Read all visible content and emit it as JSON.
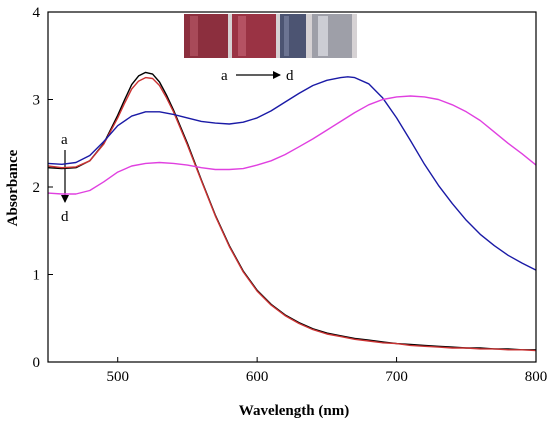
{
  "chart_data": {
    "type": "line",
    "xlabel": "Wavelength (nm)",
    "ylabel": "Absorbance",
    "xlim": [
      450,
      800
    ],
    "ylim": [
      0,
      4
    ],
    "xticks": [
      500,
      600,
      700,
      800
    ],
    "yticks": [
      0,
      1,
      2,
      3,
      4
    ],
    "grid": false,
    "legend": "none",
    "series": [
      {
        "key": "a",
        "color": "#000000",
        "x": [
          450,
          460,
          470,
          480,
          490,
          500,
          505,
          510,
          515,
          520,
          525,
          530,
          535,
          540,
          550,
          560,
          570,
          580,
          590,
          600,
          610,
          620,
          630,
          640,
          650,
          660,
          670,
          680,
          690,
          700,
          710,
          720,
          730,
          740,
          750,
          760,
          770,
          780,
          790,
          800
        ],
        "y": [
          2.22,
          2.21,
          2.22,
          2.3,
          2.5,
          2.82,
          3.0,
          3.17,
          3.27,
          3.31,
          3.29,
          3.2,
          3.05,
          2.88,
          2.5,
          2.08,
          1.68,
          1.33,
          1.04,
          0.82,
          0.66,
          0.54,
          0.45,
          0.38,
          0.33,
          0.3,
          0.27,
          0.25,
          0.23,
          0.21,
          0.2,
          0.19,
          0.18,
          0.17,
          0.16,
          0.16,
          0.15,
          0.15,
          0.14,
          0.14
        ]
      },
      {
        "key": "b",
        "color": "#cc3333",
        "x": [
          450,
          460,
          470,
          480,
          490,
          500,
          505,
          510,
          515,
          520,
          525,
          530,
          535,
          540,
          550,
          560,
          570,
          580,
          590,
          600,
          610,
          620,
          630,
          640,
          650,
          660,
          670,
          680,
          690,
          700,
          710,
          720,
          730,
          740,
          750,
          760,
          770,
          780,
          790,
          800
        ],
        "y": [
          2.24,
          2.22,
          2.23,
          2.3,
          2.49,
          2.79,
          2.96,
          3.12,
          3.21,
          3.25,
          3.24,
          3.16,
          3.02,
          2.86,
          2.48,
          2.07,
          1.67,
          1.32,
          1.03,
          0.81,
          0.65,
          0.53,
          0.44,
          0.37,
          0.32,
          0.29,
          0.26,
          0.24,
          0.22,
          0.21,
          0.19,
          0.18,
          0.17,
          0.16,
          0.16,
          0.15,
          0.15,
          0.14,
          0.14,
          0.13
        ]
      },
      {
        "key": "c",
        "color": "#1a1aa6",
        "x": [
          450,
          460,
          470,
          480,
          490,
          500,
          510,
          520,
          530,
          540,
          550,
          560,
          570,
          580,
          590,
          600,
          610,
          620,
          630,
          640,
          650,
          660,
          665,
          670,
          680,
          690,
          700,
          710,
          720,
          730,
          740,
          750,
          760,
          770,
          780,
          790,
          800
        ],
        "y": [
          2.27,
          2.26,
          2.28,
          2.36,
          2.52,
          2.7,
          2.81,
          2.86,
          2.86,
          2.83,
          2.79,
          2.75,
          2.73,
          2.72,
          2.74,
          2.79,
          2.87,
          2.97,
          3.07,
          3.16,
          3.22,
          3.25,
          3.26,
          3.25,
          3.18,
          3.02,
          2.79,
          2.53,
          2.26,
          2.02,
          1.81,
          1.62,
          1.46,
          1.33,
          1.22,
          1.13,
          1.05
        ]
      },
      {
        "key": "d",
        "color": "#e040e0",
        "x": [
          450,
          460,
          470,
          480,
          490,
          500,
          510,
          520,
          530,
          540,
          550,
          560,
          570,
          580,
          590,
          600,
          610,
          620,
          630,
          640,
          650,
          660,
          670,
          680,
          690,
          700,
          710,
          720,
          730,
          740,
          750,
          760,
          770,
          780,
          790,
          800
        ],
        "y": [
          1.93,
          1.92,
          1.92,
          1.96,
          2.06,
          2.17,
          2.24,
          2.27,
          2.28,
          2.27,
          2.25,
          2.22,
          2.2,
          2.2,
          2.21,
          2.25,
          2.3,
          2.37,
          2.46,
          2.55,
          2.65,
          2.75,
          2.85,
          2.94,
          3.0,
          3.03,
          3.04,
          3.03,
          3.0,
          2.94,
          2.86,
          2.76,
          2.63,
          2.5,
          2.38,
          2.25
        ]
      }
    ]
  },
  "annotations": {
    "inset_from": "a",
    "inset_to": "d",
    "side_from": "a",
    "side_to": "d"
  }
}
